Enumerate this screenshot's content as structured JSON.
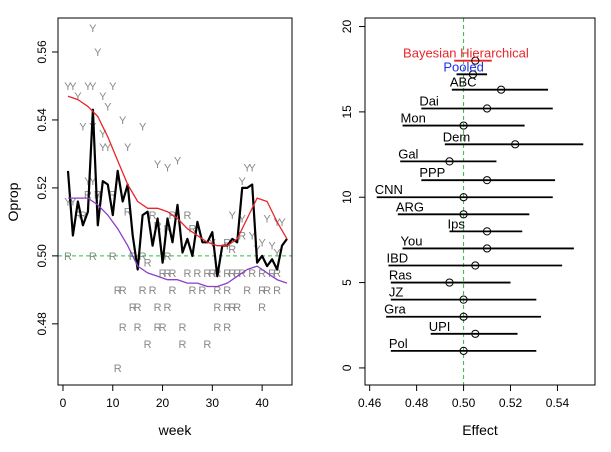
{
  "chart_data": [
    {
      "type": "line",
      "title": "",
      "xlabel": "week",
      "ylabel": "Oprop",
      "xlim": [
        -1,
        46
      ],
      "ylim": [
        0.462,
        0.57
      ],
      "xticks": [
        "0",
        "10",
        "20",
        "30",
        "40"
      ],
      "yticks": [
        "0.48",
        "0.50",
        "0.52",
        "0.54",
        "0.56"
      ],
      "reference_line": 0.5,
      "reference_color": "#2fbf3f",
      "grid": false,
      "series": [
        {
          "color": "#000000",
          "x": [
            1,
            2,
            3,
            4,
            5,
            6,
            7,
            8,
            9,
            10,
            11,
            12,
            13,
            14,
            15,
            16,
            17,
            18,
            19,
            20,
            21,
            22,
            23,
            24,
            25,
            26,
            27,
            28,
            29,
            30,
            31,
            32,
            33,
            34,
            35,
            36,
            37,
            38,
            39,
            40,
            41,
            42,
            43,
            44,
            45
          ],
          "values": [
            0.525,
            0.506,
            0.516,
            0.509,
            0.513,
            0.543,
            0.509,
            0.522,
            0.521,
            0.512,
            0.525,
            0.516,
            0.521,
            0.506,
            0.496,
            0.512,
            0.513,
            0.503,
            0.511,
            0.498,
            0.511,
            0.504,
            0.515,
            0.501,
            0.505,
            0.5,
            0.51,
            0.504,
            0.504,
            0.507,
            0.494,
            0.503,
            0.503,
            0.505,
            0.504,
            0.52,
            0.52,
            0.521,
            0.498,
            0.5,
            0.497,
            0.499,
            0.496,
            0.503,
            0.505
          ]
        },
        {
          "color": "#e8252a",
          "x": [
            1,
            3,
            5,
            7,
            9,
            11,
            13,
            15,
            17,
            19,
            21,
            23,
            25,
            27,
            29,
            31,
            33,
            35,
            37,
            39,
            41,
            43,
            45
          ],
          "values": [
            0.547,
            0.546,
            0.544,
            0.541,
            0.535,
            0.528,
            0.521,
            0.516,
            0.514,
            0.514,
            0.513,
            0.511,
            0.508,
            0.506,
            0.504,
            0.503,
            0.503,
            0.505,
            0.511,
            0.517,
            0.516,
            0.51,
            0.505
          ]
        },
        {
          "color": "#8a3fc8",
          "x": [
            1,
            3,
            5,
            7,
            9,
            11,
            13,
            15,
            17,
            19,
            21,
            23,
            25,
            27,
            29,
            31,
            33,
            35,
            37,
            39,
            41,
            43,
            45
          ],
          "values": [
            0.517,
            0.517,
            0.517,
            0.515,
            0.512,
            0.508,
            0.503,
            0.497,
            0.495,
            0.494,
            0.493,
            0.493,
            0.492,
            0.492,
            0.491,
            0.491,
            0.492,
            0.494,
            0.496,
            0.497,
            0.495,
            0.493,
            0.492
          ]
        }
      ],
      "glyphs_y": {
        "label": "Y",
        "color": "#888888",
        "points": [
          [
            1,
            0.55
          ],
          [
            2,
            0.55
          ],
          [
            3,
            0.547
          ],
          [
            5,
            0.55
          ],
          [
            6,
            0.567
          ],
          [
            6,
            0.55
          ],
          [
            7,
            0.56
          ],
          [
            8,
            0.547
          ],
          [
            9,
            0.544
          ],
          [
            10,
            0.55
          ],
          [
            4,
            0.538
          ],
          [
            6,
            0.538
          ],
          [
            8,
            0.536
          ],
          [
            12,
            0.54
          ],
          [
            16,
            0.538
          ],
          [
            8,
            0.532
          ],
          [
            9,
            0.532
          ],
          [
            13,
            0.532
          ],
          [
            19,
            0.527
          ],
          [
            23,
            0.528
          ],
          [
            21,
            0.526
          ],
          [
            37,
            0.526
          ],
          [
            38,
            0.526
          ],
          [
            36,
            0.522
          ],
          [
            5,
            0.522
          ],
          [
            6,
            0.522
          ],
          [
            7,
            0.518
          ],
          [
            1,
            0.516
          ],
          [
            2,
            0.516
          ],
          [
            43,
            0.51
          ],
          [
            44,
            0.51
          ],
          [
            34,
            0.512
          ],
          [
            36,
            0.511
          ],
          [
            41,
            0.511
          ],
          [
            30,
            0.504
          ],
          [
            40,
            0.504
          ],
          [
            39,
            0.502
          ],
          [
            33,
            0.503
          ],
          [
            38,
            0.506
          ],
          [
            42,
            0.503
          ],
          [
            43,
            0.501
          ]
        ]
      },
      "glyphs_r": {
        "label": "R",
        "color": "#888888",
        "points": [
          [
            1,
            0.5
          ],
          [
            6,
            0.5
          ],
          [
            10,
            0.5
          ],
          [
            14,
            0.5
          ],
          [
            16,
            0.5
          ],
          [
            21,
            0.5
          ],
          [
            4,
            0.512
          ],
          [
            5,
            0.518
          ],
          [
            7,
            0.518
          ],
          [
            3,
            0.512
          ],
          [
            10,
            0.518
          ],
          [
            13,
            0.513
          ],
          [
            18,
            0.512
          ],
          [
            22,
            0.512
          ],
          [
            19,
            0.509
          ],
          [
            21,
            0.508
          ],
          [
            25,
            0.512
          ],
          [
            26,
            0.508
          ],
          [
            33,
            0.504
          ],
          [
            36,
            0.506
          ],
          [
            34,
            0.502
          ],
          [
            17,
            0.498
          ],
          [
            20,
            0.495
          ],
          [
            21,
            0.495
          ],
          [
            22,
            0.495
          ],
          [
            25,
            0.495
          ],
          [
            27,
            0.495
          ],
          [
            29,
            0.495
          ],
          [
            30,
            0.495
          ],
          [
            31,
            0.495
          ],
          [
            33,
            0.495
          ],
          [
            34,
            0.495
          ],
          [
            35,
            0.495
          ],
          [
            36,
            0.495
          ],
          [
            38,
            0.495
          ],
          [
            40,
            0.495
          ],
          [
            42,
            0.495
          ],
          [
            43,
            0.495
          ],
          [
            11,
            0.49
          ],
          [
            12,
            0.49
          ],
          [
            16,
            0.49
          ],
          [
            18,
            0.49
          ],
          [
            22,
            0.49
          ],
          [
            26,
            0.49
          ],
          [
            28,
            0.49
          ],
          [
            31,
            0.49
          ],
          [
            33,
            0.49
          ],
          [
            37,
            0.49
          ],
          [
            40,
            0.49
          ],
          [
            41,
            0.49
          ],
          [
            43,
            0.49
          ],
          [
            14,
            0.485
          ],
          [
            15,
            0.485
          ],
          [
            19,
            0.485
          ],
          [
            21,
            0.485
          ],
          [
            31,
            0.485
          ],
          [
            33,
            0.485
          ],
          [
            34,
            0.485
          ],
          [
            35,
            0.485
          ],
          [
            40,
            0.485
          ],
          [
            12,
            0.479
          ],
          [
            15,
            0.479
          ],
          [
            19,
            0.479
          ],
          [
            20,
            0.479
          ],
          [
            24,
            0.479
          ],
          [
            31,
            0.479
          ],
          [
            33,
            0.479
          ],
          [
            17,
            0.474
          ],
          [
            24,
            0.474
          ],
          [
            29,
            0.474
          ],
          [
            11,
            0.467
          ]
        ]
      }
    },
    {
      "type": "errorbar",
      "title": "",
      "xlabel": "Effect",
      "ylabel": "",
      "xlim": [
        0.458,
        0.556
      ],
      "ylim": [
        -1,
        20.5
      ],
      "xticks": [
        "0.46",
        "0.48",
        "0.50",
        "0.52",
        "0.54"
      ],
      "yticks": [
        "0",
        "5",
        "10",
        "15",
        "20"
      ],
      "reference_line": 0.5,
      "reference_color": "#2fbf3f",
      "grid": false,
      "items": [
        {
          "label": "Bayesian Hierarchical",
          "y": 18.0,
          "est": 0.505,
          "lo": 0.496,
          "hi": 0.512,
          "color": "#e8252a",
          "label_color": "#e8252a"
        },
        {
          "label": "Pooled",
          "y": 17.2,
          "est": 0.504,
          "lo": 0.497,
          "hi": 0.51,
          "color": "#000000",
          "label_color": "#1f2fe6"
        },
        {
          "label": "ABC",
          "y": 16.3,
          "est": 0.516,
          "lo": 0.495,
          "hi": 0.536,
          "color": "#000000",
          "label_color": "#000000"
        },
        {
          "label": "Dai",
          "y": 15.2,
          "est": 0.51,
          "lo": 0.482,
          "hi": 0.538,
          "color": "#000000",
          "label_color": "#000000"
        },
        {
          "label": "Mon",
          "y": 14.2,
          "est": 0.5,
          "lo": 0.474,
          "hi": 0.526,
          "color": "#000000",
          "label_color": "#000000"
        },
        {
          "label": "Dem",
          "y": 13.1,
          "est": 0.522,
          "lo": 0.492,
          "hi": 0.551,
          "color": "#000000",
          "label_color": "#000000"
        },
        {
          "label": "Gal",
          "y": 12.1,
          "est": 0.494,
          "lo": 0.473,
          "hi": 0.514,
          "color": "#000000",
          "label_color": "#000000"
        },
        {
          "label": "PPP",
          "y": 11.0,
          "est": 0.51,
          "lo": 0.482,
          "hi": 0.539,
          "color": "#000000",
          "label_color": "#000000"
        },
        {
          "label": "CNN",
          "y": 10.0,
          "est": 0.5,
          "lo": 0.463,
          "hi": 0.538,
          "color": "#000000",
          "label_color": "#000000"
        },
        {
          "label": "ARG",
          "y": 9.0,
          "est": 0.5,
          "lo": 0.472,
          "hi": 0.528,
          "color": "#000000",
          "label_color": "#000000"
        },
        {
          "label": "Ips",
          "y": 8.0,
          "est": 0.51,
          "lo": 0.494,
          "hi": 0.525,
          "color": "#000000",
          "label_color": "#000000"
        },
        {
          "label": "You",
          "y": 7.0,
          "est": 0.51,
          "lo": 0.474,
          "hi": 0.547,
          "color": "#000000",
          "label_color": "#000000"
        },
        {
          "label": "IBD",
          "y": 6.0,
          "est": 0.505,
          "lo": 0.468,
          "hi": 0.542,
          "color": "#000000",
          "label_color": "#000000"
        },
        {
          "label": "Ras",
          "y": 5.0,
          "est": 0.494,
          "lo": 0.469,
          "hi": 0.52,
          "color": "#000000",
          "label_color": "#000000"
        },
        {
          "label": "JZ",
          "y": 4.0,
          "est": 0.5,
          "lo": 0.469,
          "hi": 0.531,
          "color": "#000000",
          "label_color": "#000000"
        },
        {
          "label": "Gra",
          "y": 3.0,
          "est": 0.5,
          "lo": 0.467,
          "hi": 0.533,
          "color": "#000000",
          "label_color": "#000000"
        },
        {
          "label": "UPI",
          "y": 2.0,
          "est": 0.505,
          "lo": 0.486,
          "hi": 0.523,
          "color": "#000000",
          "label_color": "#000000"
        },
        {
          "label": "Pol",
          "y": 1.0,
          "est": 0.5,
          "lo": 0.469,
          "hi": 0.531,
          "color": "#000000",
          "label_color": "#000000"
        }
      ]
    }
  ]
}
